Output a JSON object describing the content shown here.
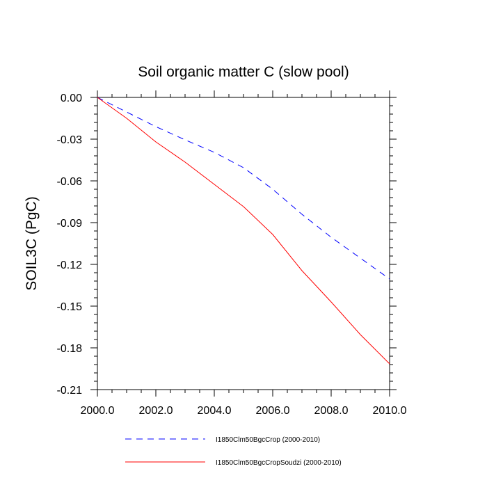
{
  "chart_data": {
    "type": "line",
    "title": "Soil organic matter C (slow pool)",
    "xlabel": "",
    "ylabel": "SOIL3C  (PgC)",
    "xlim": [
      2000,
      2010
    ],
    "ylim": [
      -0.21,
      0.0
    ],
    "x_ticks": [
      "2000.0",
      "2002.0",
      "2004.0",
      "2006.0",
      "2008.0",
      "2010.0"
    ],
    "y_ticks": [
      "0.00",
      "-0.03",
      "-0.06",
      "-0.09",
      "-0.12",
      "-0.15",
      "-0.18",
      "-0.21"
    ],
    "x": [
      2000,
      2001,
      2002,
      2003,
      2004,
      2005,
      2006,
      2007,
      2008,
      2009,
      2010
    ],
    "series": [
      {
        "name": "I1850Clm50BgcCrop (2000-2010)",
        "color": "#0000ff",
        "dash": "dashed",
        "values": [
          0.0,
          -0.0105,
          -0.021,
          -0.0305,
          -0.0395,
          -0.0505,
          -0.066,
          -0.084,
          -0.1005,
          -0.1155,
          -0.1305
        ]
      },
      {
        "name": "I1850Clm50BgcCropSoudzi (2000-2010)",
        "color": "#ff0000",
        "dash": "solid",
        "values": [
          0.0,
          -0.015,
          -0.032,
          -0.0465,
          -0.0625,
          -0.0785,
          -0.0985,
          -0.1245,
          -0.147,
          -0.1705,
          -0.1915
        ]
      }
    ],
    "grid": false,
    "legend_position": "bottom"
  }
}
